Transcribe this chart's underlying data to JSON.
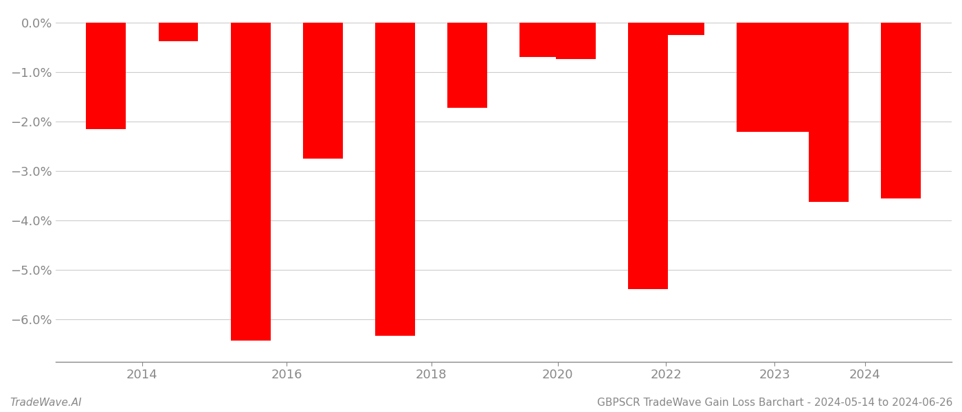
{
  "years": [
    2013,
    2014,
    2015,
    2016,
    2017,
    2018,
    2019,
    2019.5,
    2020.5,
    2021,
    2022,
    2022.5,
    2023,
    2024
  ],
  "values": [
    -2.15,
    -0.38,
    -6.42,
    -2.75,
    -6.33,
    -1.72,
    -0.7,
    -0.73,
    -5.38,
    -0.25,
    -2.2,
    -2.2,
    -3.62,
    -3.55
  ],
  "bar_color": "#ff0000",
  "ylim_bottom": -6.85,
  "ylim_top": 0.25,
  "yticks": [
    0.0,
    -1.0,
    -2.0,
    -3.0,
    -4.0,
    -5.0,
    -6.0
  ],
  "xtick_positions": [
    2013.5,
    2015.5,
    2017.5,
    2019.25,
    2020.75,
    2022.25,
    2023.5
  ],
  "xtick_labels": [
    "2014",
    "2016",
    "2018",
    "2020",
    "2022",
    "2023",
    "2024"
  ],
  "background_color": "#ffffff",
  "grid_color": "#cccccc",
  "axis_color": "#888888",
  "tick_color": "#888888",
  "bar_width": 0.55,
  "footer_left": "TradeWave.AI",
  "footer_right": "GBPSCR TradeWave Gain Loss Barchart - 2024-05-14 to 2024-06-26",
  "footer_fontsize": 11
}
